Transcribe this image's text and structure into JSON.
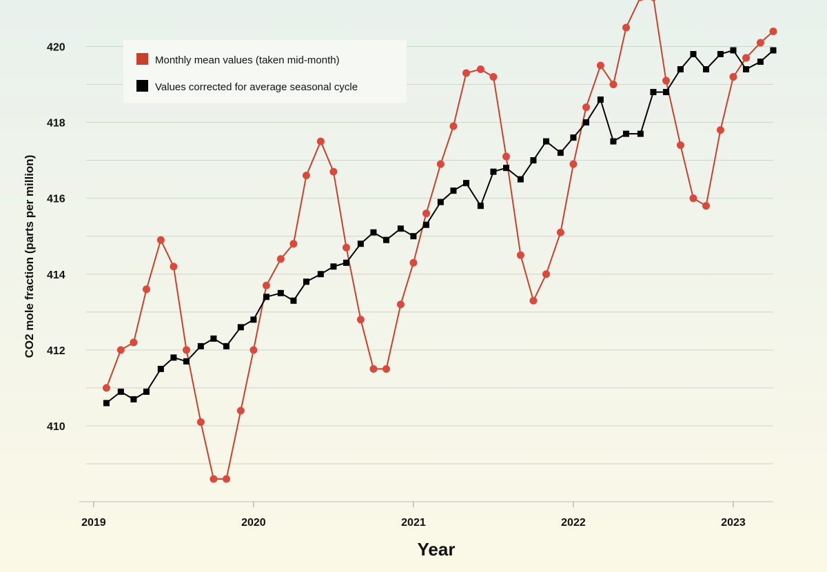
{
  "chart_data": {
    "type": "line",
    "xlabel": "Year",
    "ylabel": "CO2 mole fraction (parts per million)",
    "xlim": [
      2018.91,
      2023.25
    ],
    "ylim": [
      408.0,
      420.5
    ],
    "x_ticks": [
      {
        "value": 2019,
        "label": "2019"
      },
      {
        "value": 2020,
        "label": "2020"
      },
      {
        "value": 2021,
        "label": "2021"
      },
      {
        "value": 2022,
        "label": "2022"
      },
      {
        "value": 2023,
        "label": "2023"
      }
    ],
    "y_ticks": [
      {
        "value": 410,
        "label": "410"
      },
      {
        "value": 412,
        "label": "412"
      },
      {
        "value": 414,
        "label": "414"
      },
      {
        "value": 416,
        "label": "416"
      },
      {
        "value": 418,
        "label": "418"
      },
      {
        "value": 420,
        "label": "420"
      }
    ],
    "grid": "horizontal",
    "legend_position": "top-left",
    "series": [
      {
        "name": "Monthly mean values (taken mid-month)",
        "color": "#c8412a",
        "marker": "circle",
        "x": [
          2019.08,
          2019.17,
          2019.25,
          2019.33,
          2019.42,
          2019.5,
          2019.58,
          2019.67,
          2019.75,
          2019.83,
          2019.92,
          2020.0,
          2020.08,
          2020.17,
          2020.25,
          2020.33,
          2020.42,
          2020.5,
          2020.58,
          2020.67,
          2020.75,
          2020.83,
          2020.92,
          2021.0,
          2021.08,
          2021.17,
          2021.25,
          2021.33,
          2021.42,
          2021.5,
          2021.58,
          2021.67,
          2021.75,
          2021.83,
          2021.92,
          2022.0,
          2022.08,
          2022.17,
          2022.25,
          2022.33,
          2022.42,
          2022.5,
          2022.58,
          2022.67,
          2022.75,
          2022.83,
          2022.92,
          2023.0,
          2023.08,
          2023.17,
          2023.25
        ],
        "y": [
          411.0,
          412.0,
          412.2,
          413.6,
          414.9,
          414.2,
          412.0,
          410.1,
          408.6,
          408.6,
          410.4,
          412.0,
          413.7,
          414.4,
          414.8,
          416.6,
          417.5,
          416.7,
          414.7,
          412.8,
          411.5,
          411.5,
          413.2,
          414.3,
          415.6,
          416.9,
          417.9,
          419.3,
          419.4,
          419.2,
          417.1,
          414.5,
          413.3,
          414.0,
          415.1,
          416.9,
          418.4,
          419.5,
          419.0,
          420.5,
          421.3,
          421.3,
          419.1,
          417.4,
          416.0,
          415.8,
          417.8,
          419.2,
          419.7,
          420.1,
          420.4
        ]
      },
      {
        "name": "Values corrected for average seasonal cycle",
        "color": "#000000",
        "marker": "square",
        "x": [
          2019.08,
          2019.17,
          2019.25,
          2019.33,
          2019.42,
          2019.5,
          2019.58,
          2019.67,
          2019.75,
          2019.83,
          2019.92,
          2020.0,
          2020.08,
          2020.17,
          2020.25,
          2020.33,
          2020.42,
          2020.5,
          2020.58,
          2020.67,
          2020.75,
          2020.83,
          2020.92,
          2021.0,
          2021.08,
          2021.17,
          2021.25,
          2021.33,
          2021.42,
          2021.5,
          2021.58,
          2021.67,
          2021.75,
          2021.83,
          2021.92,
          2022.0,
          2022.08,
          2022.17,
          2022.25,
          2022.33,
          2022.42,
          2022.5,
          2022.58,
          2022.67,
          2022.75,
          2022.83,
          2022.92,
          2023.0,
          2023.08,
          2023.17,
          2023.25
        ],
        "y": [
          410.6,
          410.9,
          410.7,
          410.9,
          411.5,
          411.8,
          411.7,
          412.1,
          412.3,
          412.1,
          412.6,
          412.8,
          413.4,
          413.5,
          413.3,
          413.8,
          414.0,
          414.2,
          414.3,
          414.8,
          415.1,
          414.9,
          415.2,
          415.0,
          415.3,
          415.9,
          416.2,
          416.4,
          415.8,
          416.7,
          416.8,
          416.5,
          417.0,
          417.5,
          417.2,
          417.6,
          418.0,
          418.6,
          417.5,
          417.7,
          417.7,
          418.8,
          418.8,
          419.4,
          419.8,
          419.4,
          419.8,
          419.9,
          419.4,
          419.6,
          419.9
        ]
      }
    ]
  }
}
